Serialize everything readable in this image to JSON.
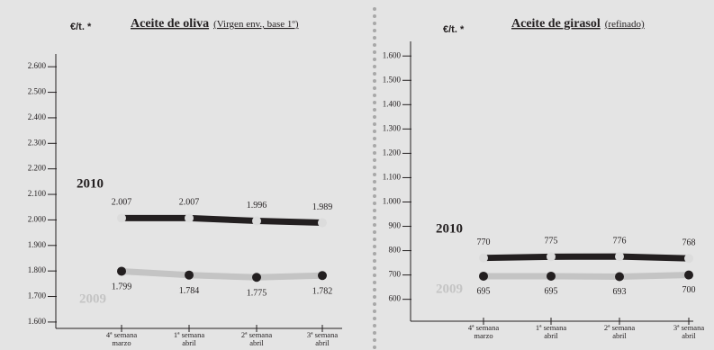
{
  "chart_data": [
    {
      "type": "line",
      "title": "Aceite de oliva",
      "subtitle": "(Virgen env., base 1º)",
      "y_label": "€/t. *",
      "categories": [
        [
          "4ª semana",
          "marzo"
        ],
        [
          "1ª semana",
          "abril"
        ],
        [
          "2ª semana",
          "abril"
        ],
        [
          "3ª semana",
          "abril"
        ]
      ],
      "series": [
        {
          "name": "2010",
          "color": "#231f20",
          "marker_color": "#dcdcdc",
          "values": [
            2007,
            2007,
            1996,
            1989
          ],
          "value_labels": [
            "2.007",
            "2.007",
            "1.996",
            "1.989"
          ]
        },
        {
          "name": "2009",
          "color": "#c4c4c4",
          "marker_color": "#231f20",
          "values": [
            1799,
            1784,
            1775,
            1782
          ],
          "value_labels": [
            "1.799",
            "1.784",
            "1.775",
            "1.782"
          ]
        }
      ],
      "ylim": [
        1575,
        2650
      ],
      "yticks": [
        {
          "value": 1600,
          "label": "1.600"
        },
        {
          "value": 1700,
          "label": "1.700"
        },
        {
          "value": 1800,
          "label": "1.800"
        },
        {
          "value": 1900,
          "label": "1.900"
        },
        {
          "value": 2000,
          "label": "2.000"
        },
        {
          "value": 2100,
          "label": "2.100"
        },
        {
          "value": 2200,
          "label": "2.200"
        },
        {
          "value": 2300,
          "label": "2.300"
        },
        {
          "value": 2400,
          "label": "2.400"
        },
        {
          "value": 2500,
          "label": "2.500"
        },
        {
          "value": 2600,
          "label": "2.600"
        }
      ]
    },
    {
      "type": "line",
      "title": "Aceite de girasol",
      "subtitle": "(refinado)",
      "y_label": "€/t. *",
      "categories": [
        [
          "4ª semana",
          "marzo"
        ],
        [
          "1ª semana",
          "abril"
        ],
        [
          "2ª semana",
          "abril"
        ],
        [
          "3ª semana",
          "abril"
        ]
      ],
      "series": [
        {
          "name": "2010",
          "color": "#231f20",
          "marker_color": "#dcdcdc",
          "values": [
            770,
            775,
            776,
            768
          ]
        },
        {
          "name": "2009",
          "color": "#c4c4c4",
          "marker_color": "#231f20",
          "values": [
            695,
            695,
            693,
            700
          ]
        }
      ],
      "ylim": [
        510,
        1660
      ],
      "yticks": [
        600,
        700,
        800,
        900,
        {
          "value": 1000,
          "label": "1.000"
        },
        {
          "value": 1100,
          "label": "1.100"
        },
        {
          "value": 1200,
          "label": "1.200"
        },
        {
          "value": 1300,
          "label": "1.300"
        },
        {
          "value": 1400,
          "label": "1.400"
        },
        {
          "value": 1500,
          "label": "1.500"
        },
        {
          "value": 1600,
          "label": "1.600"
        }
      ]
    }
  ]
}
